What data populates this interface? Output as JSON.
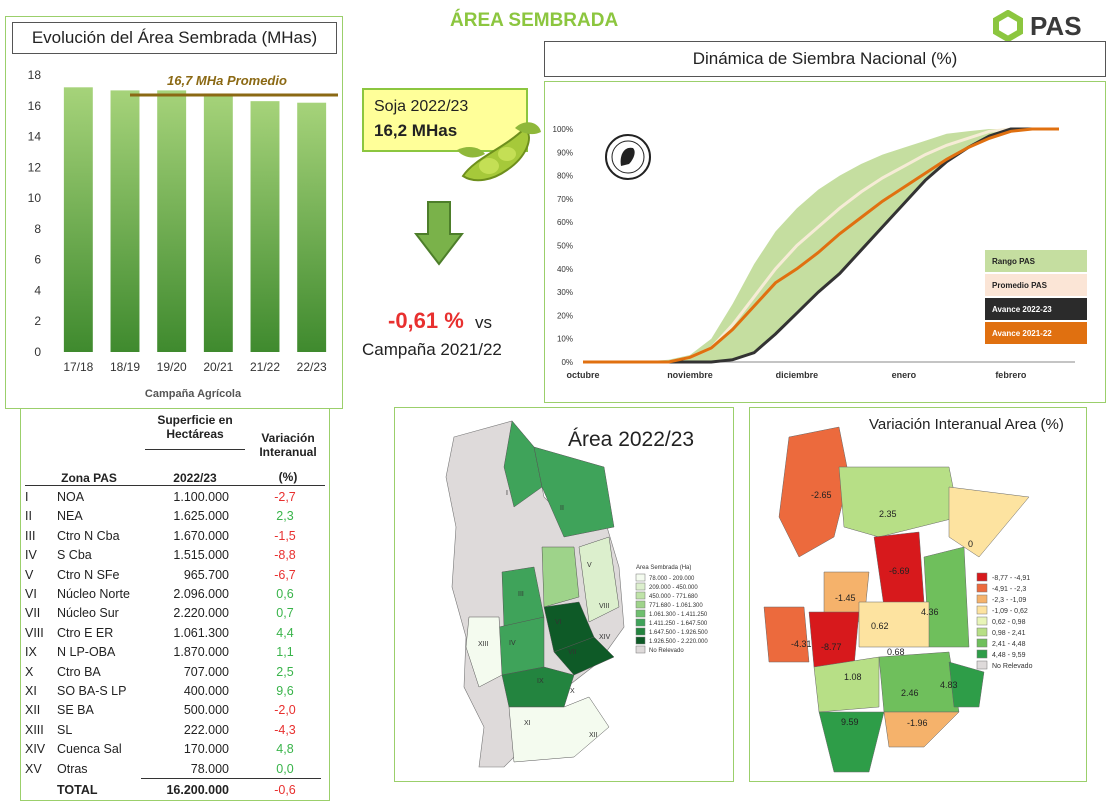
{
  "header": {
    "title": "ÁREA SEMBRADA",
    "logo_text": "PAS"
  },
  "colors": {
    "accent_green": "#8cc63f",
    "negative": "#e8302f",
    "positive": "#39b44a",
    "avg_line": "#8b6914"
  },
  "bar_chart": {
    "title": "Evolución del Área Sembrada (MHas)",
    "avg_label": "16,7 MHa Promedio",
    "xlabel": "Campaña Agrícola"
  },
  "soja": {
    "label": "Soja 2022/23",
    "value": "16,2 MHas"
  },
  "change": {
    "value": "-0,61 %",
    "vs": "vs",
    "period": "Campaña 2021/22"
  },
  "line_chart": {
    "title": "Dinámica de Siembra Nacional (%)"
  },
  "chart_data": [
    {
      "type": "bar",
      "title": "Evolución del Área Sembrada (MHas)",
      "xlabel": "Campaña Agrícola",
      "ylabel": "",
      "categories": [
        "17/18",
        "18/19",
        "19/20",
        "20/21",
        "21/22",
        "22/23"
      ],
      "values": [
        17.2,
        17.0,
        17.0,
        16.8,
        16.3,
        16.2
      ],
      "average": 16.7,
      "average_label": "16,7 MHa Promedio",
      "ylim": [
        0,
        18
      ],
      "yticks": [
        0,
        2,
        4,
        6,
        8,
        10,
        12,
        14,
        16,
        18
      ],
      "grid": false
    },
    {
      "type": "area",
      "title": "Dinámica de Siembra Nacional (%)",
      "x_labels": [
        "octubre",
        "noviembre",
        "diciembre",
        "enero",
        "febrero"
      ],
      "x_ticks": [
        0,
        1,
        2,
        3,
        4
      ],
      "xlim": [
        0,
        4.6
      ],
      "ylim": [
        0,
        100
      ],
      "yticks": [
        "0%",
        "10%",
        "20%",
        "30%",
        "40%",
        "50%",
        "60%",
        "70%",
        "80%",
        "90%",
        "100%"
      ],
      "legend_position": "bottom-right",
      "series": [
        {
          "name": "Rango PAS",
          "kind": "band",
          "color": "#c5dea0",
          "x": [
            0,
            0.5,
            0.8,
            1.0,
            1.2,
            1.4,
            1.6,
            1.8,
            2.0,
            2.2,
            2.4,
            2.6,
            2.8,
            3.0,
            3.2,
            3.4,
            3.6,
            3.8,
            4.0,
            4.2,
            4.45
          ],
          "low": [
            0,
            0,
            0,
            0,
            0,
            1,
            4,
            12,
            22,
            30,
            38,
            48,
            58,
            68,
            78,
            86,
            92,
            97,
            99,
            100,
            100
          ],
          "high": [
            0,
            0,
            1,
            3,
            10,
            25,
            42,
            56,
            66,
            74,
            80,
            85,
            89,
            92,
            95,
            98,
            99,
            100,
            100,
            100,
            100
          ]
        },
        {
          "name": "Promedio PAS",
          "kind": "line",
          "color": "#f6ecd6",
          "x": [
            0,
            0.5,
            0.8,
            1.0,
            1.2,
            1.4,
            1.6,
            1.8,
            2.0,
            2.2,
            2.4,
            2.6,
            2.8,
            3.0,
            3.2,
            3.4,
            3.6,
            3.8,
            4.0,
            4.2,
            4.45
          ],
          "values": [
            0,
            0,
            0,
            2,
            6,
            16,
            28,
            40,
            50,
            58,
            66,
            73,
            79,
            84,
            89,
            93,
            96,
            99,
            100,
            100,
            100
          ]
        },
        {
          "name": "Avance 2022-23",
          "kind": "line",
          "color": "#333333",
          "x": [
            0,
            0.5,
            0.8,
            1.0,
            1.2,
            1.4,
            1.6,
            1.8,
            2.0,
            2.2,
            2.4,
            2.6,
            2.8,
            3.0,
            3.2,
            3.4,
            3.6,
            3.8,
            4.0,
            4.2,
            4.45
          ],
          "values": [
            0,
            0,
            0,
            0,
            0,
            1,
            4,
            12,
            21,
            30,
            38,
            48,
            58,
            68,
            78,
            86,
            92,
            97,
            100,
            100,
            100
          ]
        },
        {
          "name": "Avance 2021-22",
          "kind": "line",
          "color": "#e07010",
          "x": [
            0,
            0.5,
            0.8,
            1.0,
            1.2,
            1.4,
            1.6,
            1.8,
            2.0,
            2.2,
            2.4,
            2.6,
            2.8,
            3.0,
            3.2,
            3.4,
            3.6,
            3.8,
            4.0,
            4.2,
            4.45
          ],
          "values": [
            0,
            0,
            0,
            2,
            6,
            14,
            24,
            34,
            40,
            47,
            55,
            62,
            69,
            75,
            81,
            87,
            92,
            96,
            99,
            100,
            100
          ]
        }
      ]
    }
  ],
  "table": {
    "headers": {
      "area_group": "Superficie en Hectáreas",
      "zone": "Zona PAS",
      "year": "2022/23",
      "var_label": "Variación Interanual",
      "var_unit": "(%)"
    },
    "rows": [
      {
        "roman": "I",
        "zone": "NOA",
        "area": "1.100.000",
        "var": "-2,7"
      },
      {
        "roman": "II",
        "zone": "NEA",
        "area": "1.625.000",
        "var": "2,3"
      },
      {
        "roman": "III",
        "zone": "Ctro N Cba",
        "area": "1.670.000",
        "var": "-1,5"
      },
      {
        "roman": "IV",
        "zone": "S Cba",
        "area": "1.515.000",
        "var": "-8,8"
      },
      {
        "roman": "V",
        "zone": "Ctro N SFe",
        "area": "965.700",
        "var": "-6,7"
      },
      {
        "roman": "VI",
        "zone": "Núcleo Norte",
        "area": "2.096.000",
        "var": "0,6"
      },
      {
        "roman": "VII",
        "zone": "Núcleo Sur",
        "area": "2.220.000",
        "var": "0,7"
      },
      {
        "roman": "VIII",
        "zone": "Ctro E ER",
        "area": "1.061.300",
        "var": "4,4"
      },
      {
        "roman": "IX",
        "zone": "N LP-OBA",
        "area": "1.870.000",
        "var": "1,1"
      },
      {
        "roman": "X",
        "zone": "Ctro BA",
        "area": "707.000",
        "var": "2,5"
      },
      {
        "roman": "XI",
        "zone": "SO BA-S LP",
        "area": "400.000",
        "var": "9,6"
      },
      {
        "roman": "XII",
        "zone": "SE BA",
        "area": "500.000",
        "var": "-2,0"
      },
      {
        "roman": "XIII",
        "zone": "SL",
        "area": "222.000",
        "var": "-4,3"
      },
      {
        "roman": "XIV",
        "zone": "Cuenca Sal",
        "area": "170.000",
        "var": "4,8"
      },
      {
        "roman": "XV",
        "zone": "Otras",
        "area": "78.000",
        "var": "0,0"
      }
    ],
    "total": {
      "label": "TOTAL",
      "area": "16.200.000",
      "var": "-0,6"
    }
  },
  "map1": {
    "title": "Área 2022/23",
    "legend_title": "Area Sembrada (Ha)",
    "legend": [
      {
        "label": "78.000 - 209.000",
        "color": "#f4fbef"
      },
      {
        "label": "209.000 - 450.000",
        "color": "#dcefcd"
      },
      {
        "label": "450.000 - 771.680",
        "color": "#bfe3a8"
      },
      {
        "label": "771.680 - 1.061.300",
        "color": "#9ed38a"
      },
      {
        "label": "1.061.300 - 1.411.250",
        "color": "#6fbf6f"
      },
      {
        "label": "1.411.250 - 1.647.500",
        "color": "#3fa35a"
      },
      {
        "label": "1.647.500 - 1.926.500",
        "color": "#23843f"
      },
      {
        "label": "1.926.500 - 2.220.000",
        "color": "#0e5a27"
      },
      {
        "label": "No Relevado",
        "color": "#dedada"
      }
    ],
    "zone_labels": [
      "I",
      "II",
      "III",
      "IV",
      "V",
      "VI",
      "VII",
      "VIII",
      "IX",
      "X",
      "XI",
      "XII",
      "XIII",
      "XIV"
    ]
  },
  "map2": {
    "title": "Variación Interanual Area (%)",
    "legend": [
      {
        "label": "-8,77 - -4,91",
        "color": "#d7191c"
      },
      {
        "label": "-4,91 - -2,3",
        "color": "#ec6a3d"
      },
      {
        "label": "-2,3 - -1,09",
        "color": "#f5b26b"
      },
      {
        "label": "-1,09 - 0,62",
        "color": "#fde3a0"
      },
      {
        "label": "0,62 - 0,98",
        "color": "#e8f5b8"
      },
      {
        "label": "0,98 - 2,41",
        "color": "#b7df86"
      },
      {
        "label": "2,41 - 4,48",
        "color": "#6fbf5c"
      },
      {
        "label": "4,48 - 9,59",
        "color": "#2e9d48"
      },
      {
        "label": "No Relevado",
        "color": "#dedada"
      }
    ],
    "values": [
      "-2.65",
      "2.35",
      "0",
      "-6.69",
      "-1.45",
      "4.36",
      "-4.31",
      "-8.77",
      "0.62",
      "0.68",
      "1.08",
      "2.46",
      "4.83",
      "9.59",
      "-1.96"
    ]
  }
}
